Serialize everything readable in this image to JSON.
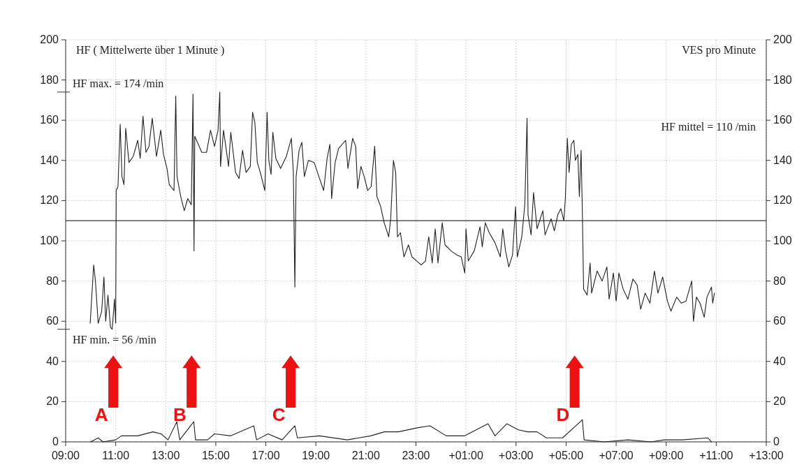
{
  "chart_data": {
    "type": "line",
    "ylabel": "HF ( Mittelwerte über 1 Minute )",
    "y2label": "VES pro Minute",
    "xlim": [
      9,
      37
    ],
    "xticks": [
      {
        "value": 9,
        "label": "09:00"
      },
      {
        "value": 11,
        "label": "11:00"
      },
      {
        "value": 13,
        "label": "13:00"
      },
      {
        "value": 15,
        "label": "15:00"
      },
      {
        "value": 17,
        "label": "17:00"
      },
      {
        "value": 19,
        "label": "19:00"
      },
      {
        "value": 21,
        "label": "21:00"
      },
      {
        "value": 23,
        "label": "23:00"
      },
      {
        "value": 25,
        "label": "+01:00"
      },
      {
        "value": 27,
        "label": "+03:00"
      },
      {
        "value": 29,
        "label": "+05:00"
      },
      {
        "value": 31,
        "label": "+07:00"
      },
      {
        "value": 33,
        "label": "+09:00"
      },
      {
        "value": 35,
        "label": "+11:00"
      },
      {
        "value": 37,
        "label": "+13:00"
      }
    ],
    "ylim": [
      0,
      200
    ],
    "yticks": [
      0,
      20,
      40,
      60,
      80,
      100,
      120,
      140,
      160,
      180,
      200
    ],
    "y2lim": [
      0,
      200
    ],
    "y2ticks": [
      0,
      20,
      40,
      60,
      80,
      100,
      120,
      140,
      160,
      180,
      200
    ],
    "grid": true,
    "line_style": "solid",
    "marker": "none",
    "series": [
      {
        "color": "#222222",
        "x": [
          9.98,
          10.12,
          10.19,
          10.3,
          10.44,
          10.53,
          10.6,
          10.69,
          10.79,
          10.86,
          10.95,
          11.0,
          11.02,
          11.09,
          11.18,
          11.25,
          11.33,
          11.4,
          11.53,
          11.7,
          11.88,
          11.98,
          12.09,
          12.21,
          12.33,
          12.46,
          12.63,
          12.8,
          12.91,
          13.05,
          13.14,
          13.33,
          13.4,
          13.45,
          13.6,
          13.74,
          13.88,
          14.02,
          14.09,
          14.13,
          14.16,
          14.3,
          14.44,
          14.63,
          14.79,
          14.95,
          15.09,
          15.16,
          15.19,
          15.31,
          15.51,
          15.6,
          15.79,
          15.93,
          16.07,
          16.21,
          16.38,
          16.47,
          16.56,
          16.66,
          16.8,
          16.96,
          17.05,
          17.12,
          17.21,
          17.28,
          17.4,
          17.59,
          17.82,
          18.02,
          18.1,
          18.16,
          18.21,
          18.33,
          18.44,
          18.54,
          18.7,
          18.93,
          19.12,
          19.31,
          19.45,
          19.56,
          19.63,
          19.77,
          19.91,
          20.19,
          20.28,
          20.47,
          20.59,
          20.67,
          20.8,
          20.93,
          21.07,
          21.21,
          21.35,
          21.44,
          21.59,
          21.73,
          21.91,
          21.99,
          22.1,
          22.19,
          22.26,
          22.38,
          22.52,
          22.7,
          22.84,
          23.03,
          23.21,
          23.38,
          23.51,
          23.65,
          23.77,
          23.88,
          24.05,
          24.16,
          24.4,
          24.63,
          24.81,
          24.95,
          25.0,
          25.09,
          25.33,
          25.56,
          25.65,
          25.77,
          25.93,
          26.16,
          26.37,
          26.47,
          26.58,
          26.71,
          26.86,
          26.98,
          27.05,
          27.23,
          27.35,
          27.44,
          27.48,
          27.6,
          27.7,
          27.84,
          28.07,
          28.16,
          28.4,
          28.53,
          28.67,
          28.79,
          28.91,
          28.97,
          29.05,
          29.12,
          29.21,
          29.31,
          29.37,
          29.47,
          29.53,
          29.6,
          29.65,
          29.7,
          29.84,
          29.96,
          30.02,
          30.24,
          30.44,
          30.63,
          30.72,
          30.89,
          31.0,
          31.11,
          31.28,
          31.47,
          31.67,
          31.84,
          31.98,
          32.16,
          32.35,
          32.53,
          32.67,
          32.86,
          33.05,
          33.19,
          33.42,
          33.6,
          33.79,
          34.02,
          34.09,
          34.21,
          34.35,
          34.52,
          34.63,
          34.81,
          34.86,
          34.93
        ],
        "values": [
          59,
          88,
          80,
          59,
          65,
          82,
          60,
          73,
          57,
          56,
          71,
          59,
          125,
          127,
          158,
          132,
          128,
          156,
          139,
          142,
          150,
          141,
          162,
          144,
          147,
          161,
          142,
          155,
          143,
          136,
          128,
          125,
          172,
          132,
          122,
          115,
          121,
          118,
          173,
          95,
          152,
          148,
          144,
          144,
          155,
          147,
          155,
          174,
          137,
          155,
          137,
          154,
          134,
          131,
          145,
          134,
          137,
          164,
          159,
          139,
          133,
          125,
          164,
          140,
          133,
          154,
          141,
          136,
          142,
          151,
          134,
          77,
          132,
          145,
          149,
          132,
          140,
          139,
          132,
          125,
          141,
          148,
          121,
          139,
          146,
          150,
          136,
          151,
          147,
          126,
          137,
          132,
          125,
          127,
          147,
          122,
          117,
          109,
          102,
          111,
          140,
          134,
          102,
          104,
          92,
          98,
          92,
          90,
          88,
          90,
          102,
          89,
          106,
          89,
          109,
          98,
          95,
          93,
          92,
          84,
          106,
          90,
          95,
          107,
          97,
          109,
          104,
          99,
          92,
          106,
          95,
          87,
          93,
          117,
          92,
          102,
          118,
          161,
          113,
          103,
          124,
          106,
          115,
          103,
          111,
          105,
          113,
          116,
          110,
          121,
          151,
          134,
          148,
          150,
          140,
          143,
          122,
          145,
          114,
          76,
          73,
          89,
          74,
          85,
          80,
          87,
          71,
          84,
          70,
          84,
          76,
          71,
          81,
          78,
          66,
          74,
          69,
          85,
          74,
          82,
          70,
          65,
          72,
          69,
          70,
          80,
          60,
          72,
          69,
          62,
          72,
          77,
          69,
          74
        ]
      },
      {
        "color": "#222222",
        "x": [
          10.0,
          10.3,
          10.49,
          11.0,
          11.23,
          11.88,
          12.49,
          12.81,
          13.09,
          13.44,
          13.56,
          14.12,
          14.19,
          14.67,
          14.95,
          15.6,
          16.52,
          16.63,
          17.09,
          17.65,
          18.16,
          18.26,
          19.14,
          20.26,
          21.19,
          21.74,
          22.3,
          23.05,
          23.56,
          24.21,
          24.95,
          25.88,
          26.16,
          26.63,
          27.09,
          27.47,
          27.84,
          28.21,
          28.86,
          29.65,
          29.72,
          30.53,
          31.47,
          32.4,
          32.91,
          33.65,
          34.67,
          34.81
        ],
        "values": [
          0,
          2,
          0,
          1,
          3,
          3,
          5,
          4,
          1,
          10,
          1,
          10,
          1,
          1,
          4,
          3,
          8,
          1,
          4,
          1,
          8,
          2,
          3,
          1,
          3,
          5,
          5,
          7,
          8,
          3,
          3,
          9,
          3,
          9,
          6,
          5,
          5,
          2,
          2,
          11,
          1,
          0,
          1,
          0,
          1,
          1,
          2,
          0
        ]
      }
    ],
    "ref_lines": [
      {
        "axis": "y2",
        "value": 110,
        "label": "HF mittel = 110 /min",
        "color": "#333333",
        "line_style": "solid"
      }
    ],
    "annotations": [
      "HF max. = 174 /min",
      "HF min. = 56 /min",
      "A",
      "B",
      "C",
      "D"
    ]
  }
}
